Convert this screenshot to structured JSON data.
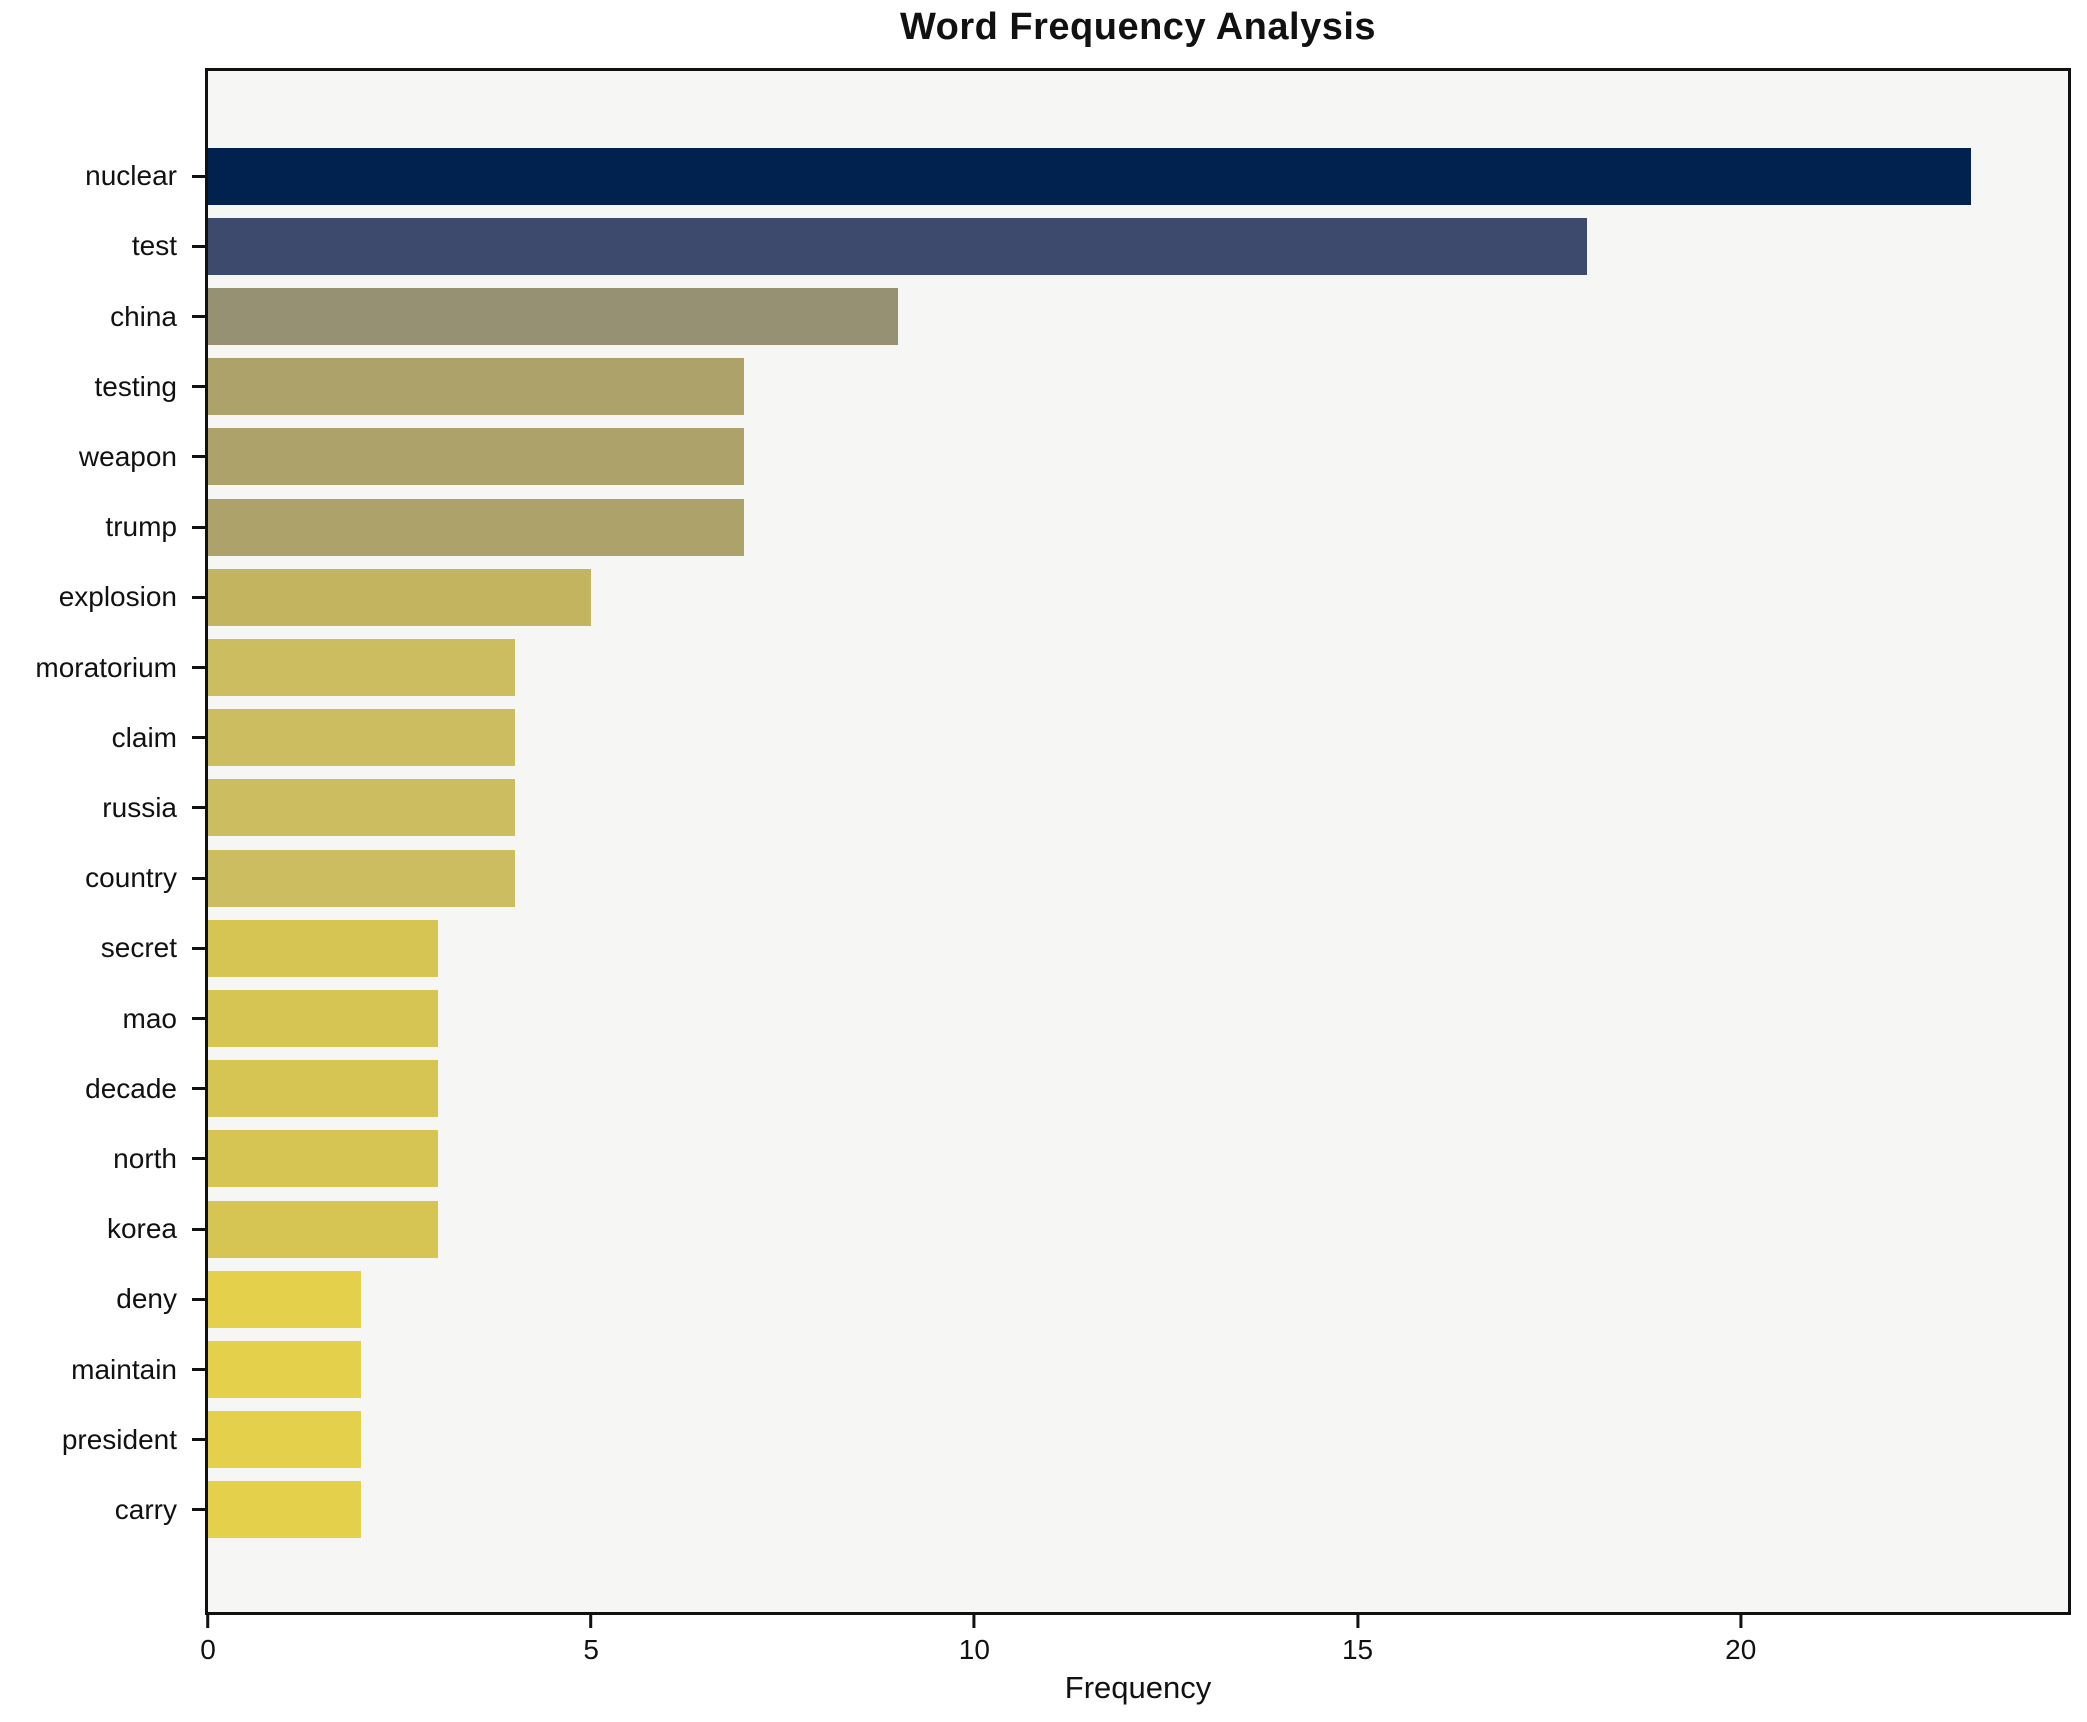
{
  "chart_data": {
    "type": "bar",
    "orientation": "horizontal",
    "title": "Word Frequency Analysis",
    "xlabel": "Frequency",
    "ylabel": "",
    "categories": [
      "nuclear",
      "test",
      "china",
      "testing",
      "weapon",
      "trump",
      "explosion",
      "moratorium",
      "claim",
      "russia",
      "country",
      "secret",
      "mao",
      "decade",
      "north",
      "korea",
      "deny",
      "maintain",
      "president",
      "carry"
    ],
    "values": [
      23,
      18,
      9,
      7,
      7,
      7,
      5,
      4,
      4,
      4,
      4,
      3,
      3,
      3,
      3,
      3,
      2,
      2,
      2,
      2
    ],
    "bar_colors": [
      "#01214e",
      "#3d4a6e",
      "#959172",
      "#ada269",
      "#ada269",
      "#ada269",
      "#c3b45f",
      "#ccbe60",
      "#ccbe60",
      "#ccbe60",
      "#ccbe60",
      "#d6c553",
      "#d6c553",
      "#d6c553",
      "#d6c553",
      "#d6c553",
      "#e4d04b",
      "#e4d04b",
      "#e4d04b",
      "#e4d04b"
    ],
    "xticks": [
      0,
      5,
      10,
      15,
      20
    ],
    "xlim": [
      0,
      24.27
    ],
    "grid": false,
    "legend_position": "none",
    "plot_background": "#f6f6f4",
    "figure_background": "#ffffff",
    "spine_color": "#111111",
    "text_color": "#111111"
  }
}
